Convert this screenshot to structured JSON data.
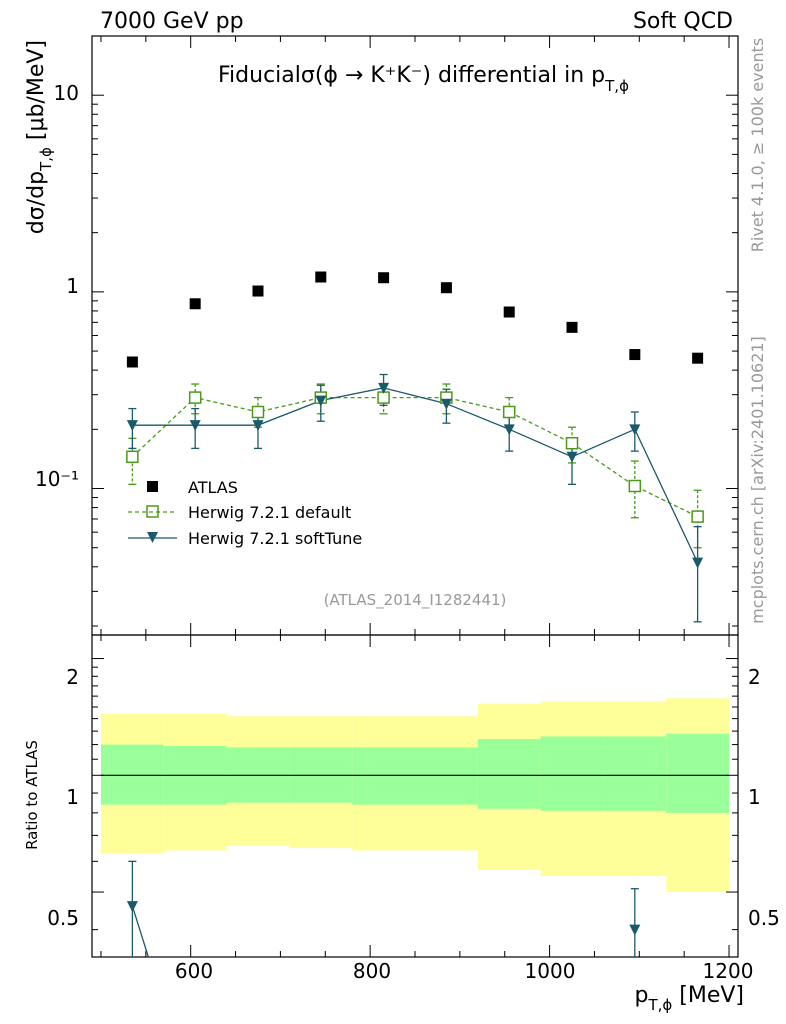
{
  "header": {
    "left": "7000 GeV pp",
    "right": "Soft QCD"
  },
  "side": {
    "top": "Rivet 4.1.0, ≥ 100k events",
    "bottom": "mcplots.cern.ch [arXiv:2401.10621]"
  },
  "colors": {
    "atlas": "#000000",
    "herwig_default": "#4a9a19",
    "herwig_softtune": "#1a5a6a",
    "band_inner": "#99ff99",
    "band_outer": "#ffff99"
  },
  "chart_data": [
    {
      "type": "scatter",
      "panel": "main",
      "title": "Fiducialσ(ϕ →  K⁺K⁻) differential in p",
      "title_sub": "T,ϕ",
      "ylabel": "dσ/dp",
      "ylabel_sub": "T,ϕ",
      "ylabel_unit": " [μb/MeV]",
      "yscale": "log",
      "ylim": [
        0.018,
        20
      ],
      "xlim": [
        490,
        1210
      ],
      "y_tick_labels": [
        "10",
        "1",
        "10⁻¹"
      ],
      "legend_position": "middle-left",
      "watermark": "(ATLAS_2014_I1282441)",
      "x": [
        535,
        605,
        675,
        745,
        815,
        885,
        955,
        1025,
        1095,
        1165
      ],
      "series": [
        {
          "name": "ATLAS",
          "marker": "filled-square",
          "values": [
            0.44,
            0.87,
            1.01,
            1.19,
            1.18,
            1.05,
            0.79,
            0.66,
            0.48,
            0.46
          ]
        },
        {
          "name": "Herwig 7.2.1 default",
          "marker": "open-square",
          "line": "dashed",
          "values": [
            0.145,
            0.29,
            0.245,
            0.29,
            0.29,
            0.29,
            0.245,
            0.17,
            0.103,
            0.072
          ],
          "err_lo": [
            0.04,
            0.05,
            0.04,
            0.05,
            0.05,
            0.05,
            0.04,
            0.035,
            0.032,
            0.022
          ],
          "err_hi": [
            0.035,
            0.05,
            0.045,
            0.05,
            0.05,
            0.05,
            0.045,
            0.035,
            0.035,
            0.026
          ]
        },
        {
          "name": "Herwig 7.2.1 softTune",
          "marker": "filled-triangle-down",
          "line": "solid",
          "values": [
            0.21,
            0.21,
            0.21,
            0.28,
            0.325,
            0.27,
            0.2,
            0.145,
            0.2,
            0.042
          ],
          "err_lo": [
            0.05,
            0.05,
            0.05,
            0.06,
            0.06,
            0.055,
            0.045,
            0.04,
            0.045,
            0.021
          ],
          "err_hi": [
            0.045,
            0.045,
            0.045,
            0.055,
            0.055,
            0.05,
            0.04,
            0.035,
            0.045,
            0.022
          ]
        }
      ]
    },
    {
      "type": "area",
      "panel": "ratio",
      "ylabel": "Ratio to ATLAS",
      "xlabel": "p",
      "xlabel_sub": "T,ϕ",
      "xlabel_unit": " [MeV]",
      "xlim": [
        490,
        1210
      ],
      "ylim": [
        0.34,
        2.3
      ],
      "x_tick_labels": [
        "600",
        "800",
        "1000",
        "1200"
      ],
      "y_tick_labels": [
        "2",
        "1",
        "0.5"
      ],
      "bins": [
        [
          500,
          570
        ],
        [
          570,
          640
        ],
        [
          640,
          710
        ],
        [
          710,
          780
        ],
        [
          780,
          850
        ],
        [
          850,
          920
        ],
        [
          920,
          990
        ],
        [
          990,
          1060
        ],
        [
          1060,
          1130
        ],
        [
          1130,
          1200
        ]
      ],
      "band_inner": {
        "lo": [
          0.84,
          0.84,
          0.85,
          0.85,
          0.84,
          0.84,
          0.82,
          0.81,
          0.81,
          0.8
        ],
        "hi": [
          1.2,
          1.19,
          1.18,
          1.18,
          1.18,
          1.18,
          1.24,
          1.26,
          1.26,
          1.28
        ]
      },
      "band_outer": {
        "lo": [
          0.63,
          0.64,
          0.66,
          0.65,
          0.64,
          0.64,
          0.57,
          0.55,
          0.55,
          0.5
        ],
        "hi": [
          1.44,
          1.44,
          1.42,
          1.42,
          1.42,
          1.42,
          1.53,
          1.55,
          1.55,
          1.58
        ]
      },
      "reference_line": 1,
      "series": [
        {
          "name": "Herwig 7.2.1 softTune",
          "x": [
            535,
            1095
          ],
          "values": [
            0.46,
            0.4
          ],
          "err_lo": [
            0.13,
            0.12
          ],
          "err_hi": [
            0.14,
            0.11
          ]
        }
      ]
    }
  ]
}
